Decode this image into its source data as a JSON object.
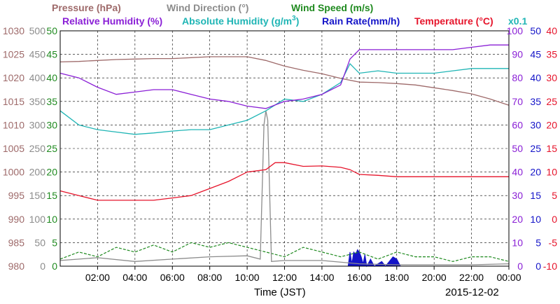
{
  "legend": {
    "row1": [
      {
        "key": "pressure",
        "text": "Pressure (hPa)",
        "color": "#9e6a6a"
      },
      {
        "key": "wind_direction",
        "text": "Wind Direction (°)",
        "color": "#8c8c8c"
      },
      {
        "key": "wind_speed",
        "text": "Wind Speed (m/s)",
        "color": "#1f8a1f"
      }
    ],
    "row2": [
      {
        "key": "relative_humidity",
        "text": "Relative Humidity (%)",
        "color": "#8a1fd6"
      },
      {
        "key": "absolute_humidity",
        "text": "Absolute Humidity (g/m",
        "sup": "3",
        "tail": ")",
        "color": "#1fb5b5"
      },
      {
        "key": "rain_rate",
        "text": "Rain Rate(mm/h)",
        "color": "#1414c8"
      },
      {
        "key": "temperature",
        "text": "Temperature (°C)",
        "color": "#e6142b"
      }
    ]
  },
  "scale_note": "x0.1",
  "footer": {
    "xlabel": "Time (JST)",
    "date": "2015-12-02"
  },
  "chart_data": {
    "type": "line",
    "title": "",
    "xlabel": "Time (JST)",
    "x_range_hours": [
      0,
      24
    ],
    "x_ticks": [
      "02:00",
      "04:00",
      "06:00",
      "08:00",
      "10:00",
      "12:00",
      "14:00",
      "16:00",
      "18:00",
      "20:00",
      "22:00",
      "00:00"
    ],
    "grid": true,
    "axes": {
      "pressure": {
        "side": "left",
        "color": "#9e6a6a",
        "ticks": [
          "1030",
          "1025",
          "1020",
          "1015",
          "1010",
          "1005",
          "1000",
          "995",
          "990",
          "985",
          "980"
        ],
        "ylim": [
          980,
          1030
        ]
      },
      "wind_direction": {
        "side": "left",
        "color": "#8c8c8c",
        "ticks": [
          "500",
          "450",
          "400",
          "350",
          "300",
          "250",
          "200",
          "150",
          "100",
          "50",
          "0"
        ],
        "ylim": [
          0,
          500
        ]
      },
      "wind_speed": {
        "side": "left",
        "color": "#1f8a1f",
        "ticks": [
          "50",
          "45",
          "40",
          "35",
          "30",
          "25",
          "20",
          "15",
          "10",
          "5",
          "0"
        ],
        "ylim": [
          0,
          50
        ]
      },
      "relative_humidity": {
        "side": "right",
        "color": "#8a1fd6",
        "ticks": [
          "100",
          "90",
          "80",
          "70",
          "60",
          "50",
          "40",
          "30",
          "20",
          "10",
          "0"
        ],
        "ylim": [
          0,
          100
        ]
      },
      "rain_rate": {
        "side": "right",
        "color": "#1414c8",
        "ticks": [
          "50",
          "45",
          "40",
          "35",
          "30",
          "25",
          "20",
          "15",
          "10",
          "5",
          "0"
        ],
        "ylim": [
          0,
          50
        ]
      },
      "temperature": {
        "side": "right",
        "color": "#e6142b",
        "ticks": [
          "40",
          "35",
          "30",
          "25",
          "20",
          "15",
          "10",
          "5",
          "0",
          "-5",
          "-10"
        ],
        "ylim": [
          -10,
          40
        ]
      }
    },
    "series": [
      {
        "name": "Pressure (hPa)",
        "color": "#9e6a6a",
        "axis": "pressure",
        "x": [
          0,
          1,
          2,
          3,
          4,
          5,
          6,
          7,
          8,
          9,
          10,
          11,
          12,
          13,
          14,
          15,
          16,
          17,
          18,
          19,
          20,
          21,
          22,
          23,
          24
        ],
        "y": [
          1023.4,
          1023.5,
          1023.7,
          1023.9,
          1024.0,
          1024.1,
          1024.1,
          1024.3,
          1024.5,
          1024.5,
          1024.5,
          1023.7,
          1022.5,
          1021.6,
          1020.9,
          1019.9,
          1019.1,
          1019.0,
          1018.8,
          1018.5,
          1017.9,
          1017.3,
          1016.6,
          1015.5,
          1014.2
        ]
      },
      {
        "name": "Relative Humidity (%)",
        "color": "#8a1fd6",
        "axis": "relative_humidity",
        "x": [
          0,
          1,
          2,
          3,
          4,
          5,
          6,
          7,
          8,
          9,
          10,
          11,
          12,
          13,
          14,
          15,
          15.5,
          16,
          17,
          18,
          19,
          20,
          21,
          22,
          23,
          24
        ],
        "y": [
          82,
          80,
          76,
          73,
          74,
          75,
          75,
          73,
          71,
          70,
          68,
          67,
          70,
          71,
          73,
          77,
          88,
          92,
          92,
          92,
          92,
          92,
          92,
          93,
          94,
          94
        ]
      },
      {
        "name": "Absolute Humidity (g/m3) x0.1",
        "color": "#1fb5b5",
        "axis": "wind_speed",
        "x": [
          0,
          1,
          2,
          3,
          4,
          5,
          6,
          7,
          8,
          9,
          10,
          11,
          12,
          13,
          14,
          15,
          15.5,
          16,
          17,
          18,
          19,
          20,
          21,
          22,
          23,
          24
        ],
        "y": [
          33,
          30,
          29,
          28.5,
          28,
          28.3,
          28.7,
          29,
          29,
          30,
          31,
          33,
          35.5,
          35,
          36.5,
          39,
          43,
          41,
          41.5,
          41,
          41,
          41,
          41.5,
          42,
          42,
          42
        ]
      },
      {
        "name": "Temperature (°C)",
        "color": "#e6142b",
        "axis": "temperature",
        "x": [
          0,
          1,
          2,
          3,
          4,
          5,
          6,
          7,
          8,
          9,
          10,
          11,
          11.5,
          12,
          13,
          14,
          15,
          15.5,
          16,
          17,
          18,
          19,
          20,
          21,
          22,
          23,
          24
        ],
        "y": [
          6,
          5,
          4,
          4,
          4,
          4,
          4.5,
          5,
          6.5,
          8,
          10,
          10.5,
          12,
          12,
          11.2,
          11.3,
          11,
          10.5,
          9.5,
          9.3,
          9,
          9,
          9,
          9,
          9,
          9,
          9
        ]
      },
      {
        "name": "Wind Direction (°)",
        "color": "#8c8c8c",
        "axis": "wind_direction",
        "x": [
          0,
          2,
          4,
          6,
          8,
          10,
          10.7,
          10.9,
          11.0,
          11.1,
          11.3,
          12,
          14,
          16,
          18,
          20,
          22,
          24
        ],
        "y": [
          12,
          18,
          10,
          15,
          20,
          22,
          15,
          300,
          330,
          310,
          10,
          12,
          12,
          5,
          3,
          3,
          3,
          5
        ]
      },
      {
        "name": "Wind Speed (m/s)",
        "color": "#1f8a1f",
        "axis": "wind_speed",
        "x": [
          0,
          1,
          2,
          3,
          4,
          5,
          6,
          7,
          8,
          9,
          10,
          11,
          12,
          13,
          14,
          15,
          16,
          17,
          18,
          19,
          20,
          21,
          22,
          23,
          24
        ],
        "y": [
          1.5,
          3,
          2,
          4,
          3,
          4.5,
          3,
          5,
          4,
          5,
          4,
          3,
          2,
          4,
          3,
          2,
          3,
          1.5,
          3,
          2,
          2,
          1,
          2,
          2,
          1
        ]
      },
      {
        "name": "Rain Rate(mm/h)",
        "color": "#1414c8",
        "axis": "rain_rate",
        "x": [
          15.4,
          15.5,
          15.6,
          15.7,
          15.8,
          15.9,
          16.0,
          16.1,
          16.2,
          16.3,
          16.4,
          16.6,
          16.8,
          17.0,
          17.2,
          17.4,
          17.6,
          17.8,
          18.0,
          18.2
        ],
        "y": [
          0,
          3,
          0.5,
          3,
          2.5,
          3.5,
          3,
          2,
          0.5,
          2.5,
          0,
          1.5,
          0,
          0.5,
          1,
          0,
          1,
          2,
          1.5,
          0
        ]
      }
    ]
  }
}
